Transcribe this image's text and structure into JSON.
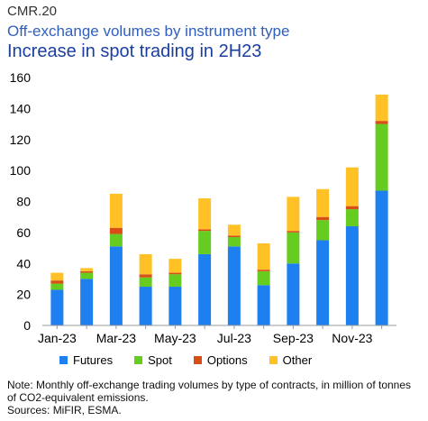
{
  "header": {
    "code": "CMR.20",
    "subtitle": "Off-exchange volumes by instrument type",
    "title": "Increase in spot trading in 2H23"
  },
  "colors": {
    "Futures": "#1e7ff0",
    "Spot": "#66cc1f",
    "Options": "#d94e17",
    "Other": "#ffc125"
  },
  "chart_data": {
    "type": "bar",
    "stacked": true,
    "categories": [
      "Jan-23",
      "Feb-23",
      "Mar-23",
      "Apr-23",
      "May-23",
      "Jun-23",
      "Jul-23",
      "Aug-23",
      "Sep-23",
      "Oct-23",
      "Nov-23",
      "Dec-23"
    ],
    "x_tick_labels": [
      "Jan-23",
      "Mar-23",
      "May-23",
      "Jul-23",
      "Sep-23",
      "Nov-23"
    ],
    "series": [
      {
        "name": "Futures",
        "values": [
          23,
          30,
          51,
          25,
          25,
          46,
          51,
          26,
          40,
          55,
          64,
          87
        ]
      },
      {
        "name": "Spot",
        "values": [
          4,
          4,
          8,
          6,
          8,
          15,
          6,
          9,
          20,
          13,
          11,
          43
        ]
      },
      {
        "name": "Options",
        "values": [
          2,
          1,
          4,
          2,
          1,
          1,
          1,
          1,
          1,
          2,
          2,
          2
        ]
      },
      {
        "name": "Other",
        "values": [
          5,
          2,
          22,
          13,
          9,
          20,
          7,
          17,
          22,
          18,
          25,
          17
        ]
      }
    ],
    "ylim": [
      0,
      160
    ],
    "yticks": [
      0,
      20,
      40,
      60,
      80,
      100,
      120,
      140,
      160
    ],
    "legend_position": "bottom",
    "grid": false
  },
  "legend": {
    "items": [
      {
        "label": "Futures"
      },
      {
        "label": "Spot"
      },
      {
        "label": "Options"
      },
      {
        "label": "Other"
      }
    ]
  },
  "note": {
    "text": "Note:  Monthly off-exchange trading volumes by type of contracts, in million of tonnes of CO2-equivalent emissions.",
    "sources": "Sources: MiFIR, ESMA."
  }
}
